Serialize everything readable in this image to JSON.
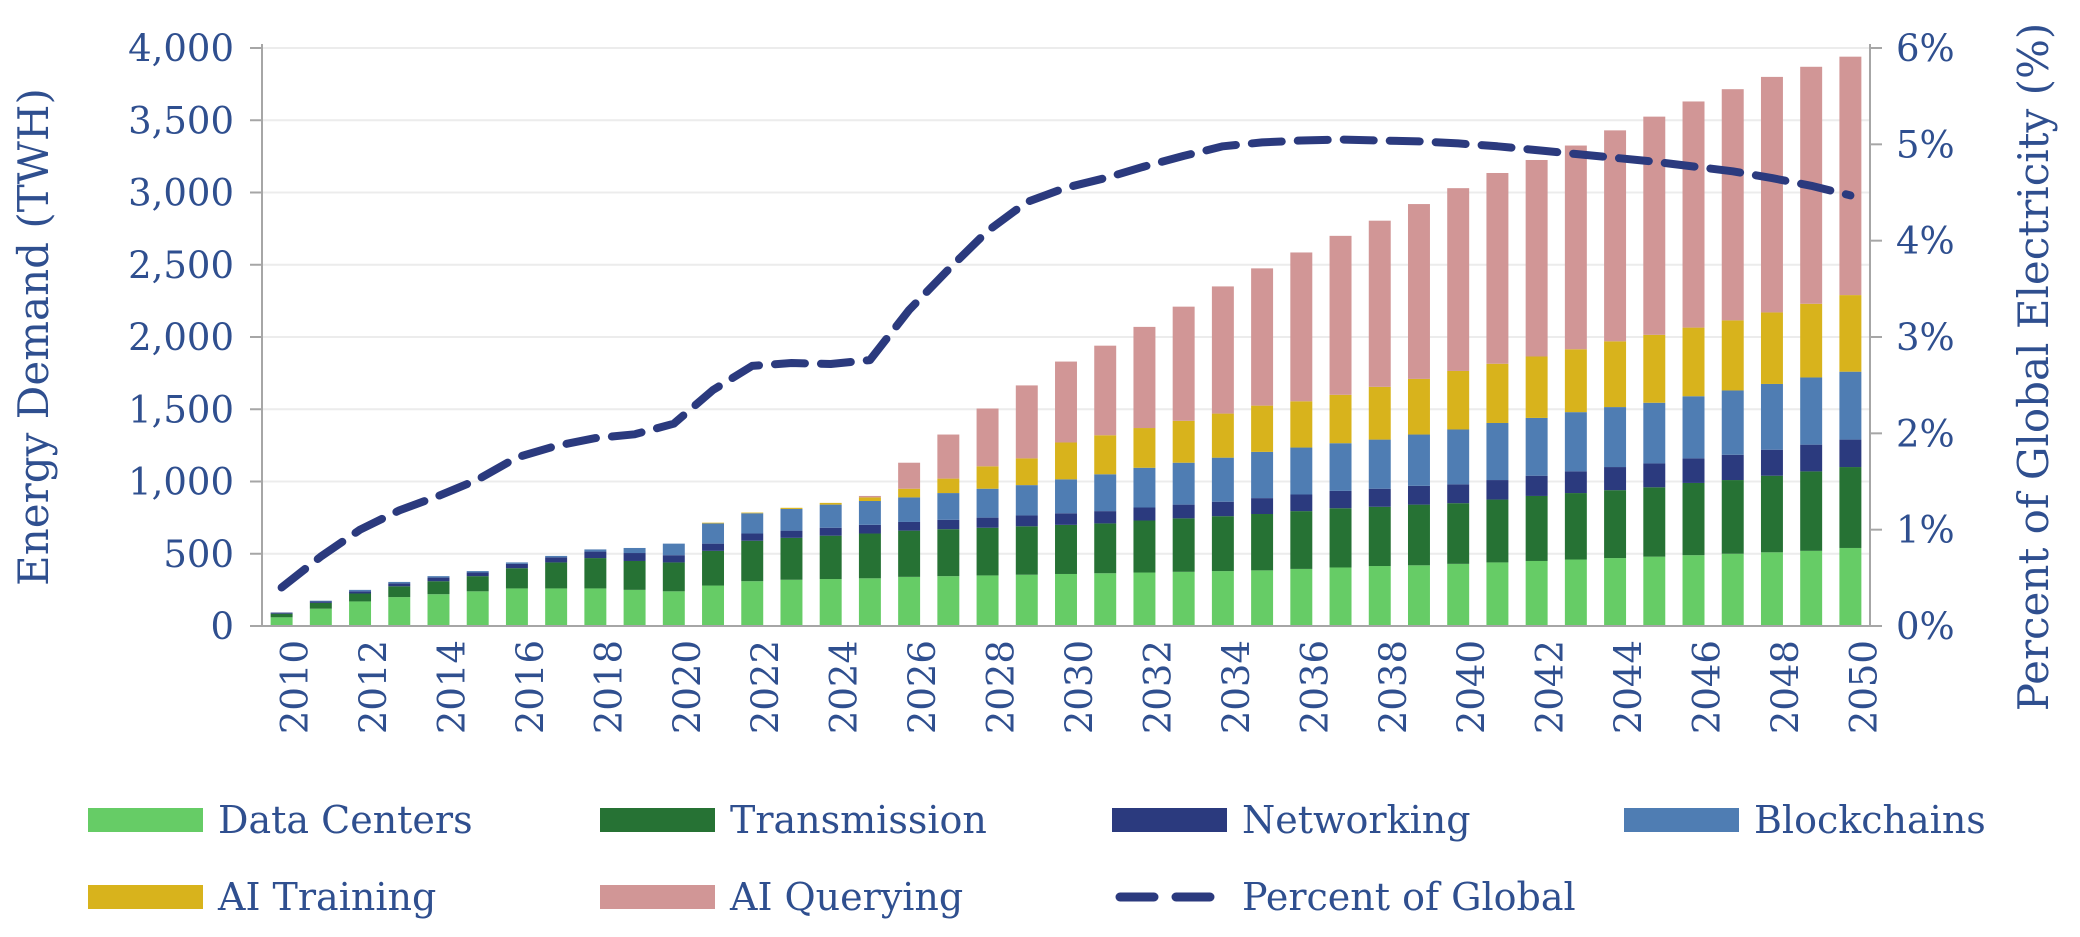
{
  "chart_data": {
    "type": "bar",
    "stacked": true,
    "x": [
      2010,
      2011,
      2012,
      2013,
      2014,
      2015,
      2016,
      2017,
      2018,
      2019,
      2020,
      2021,
      2022,
      2023,
      2024,
      2025,
      2026,
      2027,
      2028,
      2029,
      2030,
      2031,
      2032,
      2033,
      2034,
      2035,
      2036,
      2037,
      2038,
      2039,
      2040,
      2041,
      2042,
      2043,
      2044,
      2045,
      2046,
      2047,
      2048,
      2049,
      2050
    ],
    "x_tick_labels": [
      "2010",
      "2012",
      "2014",
      "2016",
      "2018",
      "2020",
      "2022",
      "2024",
      "2026",
      "2028",
      "2030",
      "2032",
      "2034",
      "2036",
      "2038",
      "2040",
      "2042",
      "2044",
      "2046",
      "2048",
      "2050"
    ],
    "ylabel": "Energy Demand (TWH)",
    "ylim": [
      0,
      4000
    ],
    "y_tick_labels": [
      "0",
      "500",
      "1,000",
      "1,500",
      "2,000",
      "2,500",
      "3,000",
      "3,500",
      "4,000"
    ],
    "y2label": "Percent of Global Electricity (%)",
    "y2lim": [
      0,
      6
    ],
    "y2_tick_labels": [
      "0%",
      "1%",
      "2%",
      "3%",
      "4%",
      "5%",
      "6%"
    ],
    "grid": true,
    "legend_position": "bottom",
    "series": [
      {
        "name": "Data Centers",
        "color": "#66cc66",
        "values": [
          60,
          120,
          170,
          200,
          220,
          240,
          260,
          260,
          260,
          250,
          240,
          280,
          310,
          320,
          325,
          330,
          340,
          345,
          350,
          355,
          360,
          365,
          370,
          375,
          380,
          385,
          395,
          405,
          415,
          420,
          430,
          440,
          450,
          460,
          470,
          480,
          490,
          500,
          510,
          520,
          540
        ]
      },
      {
        "name": "Transmission",
        "color": "#267234",
        "values": [
          25,
          40,
          55,
          75,
          90,
          105,
          140,
          180,
          210,
          200,
          200,
          240,
          280,
          290,
          300,
          310,
          320,
          325,
          330,
          335,
          340,
          345,
          360,
          370,
          380,
          390,
          400,
          410,
          410,
          420,
          420,
          435,
          450,
          460,
          470,
          480,
          500,
          510,
          530,
          550,
          560
        ]
      },
      {
        "name": "Networking",
        "color": "#2b3a7e",
        "values": [
          8,
          10,
          15,
          20,
          25,
          25,
          30,
          35,
          45,
          55,
          50,
          50,
          50,
          50,
          55,
          60,
          60,
          65,
          70,
          75,
          80,
          85,
          90,
          95,
          100,
          110,
          115,
          120,
          125,
          130,
          130,
          135,
          140,
          150,
          160,
          165,
          170,
          175,
          180,
          185,
          190
        ]
      },
      {
        "name": "Blockchains",
        "color": "#4f7db3",
        "values": [
          0,
          5,
          10,
          10,
          10,
          10,
          10,
          10,
          15,
          35,
          80,
          140,
          140,
          150,
          160,
          165,
          170,
          185,
          200,
          210,
          235,
          255,
          275,
          290,
          305,
          320,
          325,
          330,
          340,
          355,
          380,
          395,
          400,
          410,
          415,
          420,
          430,
          445,
          455,
          465,
          470
        ]
      },
      {
        "name": "AI Training",
        "color": "#d8b31c",
        "values": [
          0,
          0,
          0,
          0,
          0,
          0,
          0,
          0,
          0,
          0,
          0,
          5,
          5,
          8,
          12,
          25,
          60,
          100,
          155,
          185,
          255,
          270,
          275,
          290,
          305,
          320,
          320,
          335,
          365,
          385,
          405,
          410,
          425,
          435,
          455,
          470,
          475,
          485,
          495,
          510,
          530
        ]
      },
      {
        "name": "AI Querying",
        "color": "#d19696",
        "values": [
          0,
          0,
          0,
          0,
          0,
          0,
          0,
          0,
          0,
          0,
          0,
          0,
          0,
          0,
          0,
          10,
          180,
          305,
          400,
          505,
          560,
          620,
          700,
          790,
          880,
          950,
          1030,
          1100,
          1150,
          1210,
          1265,
          1320,
          1360,
          1410,
          1460,
          1510,
          1565,
          1600,
          1630,
          1640,
          1650
        ]
      }
    ],
    "line_series": {
      "name": "Percent of Global",
      "axis": "right",
      "color": "#2b3a7e",
      "style": "dashed",
      "values": [
        0.4,
        0.72,
        1.0,
        1.2,
        1.35,
        1.52,
        1.75,
        1.87,
        1.95,
        1.99,
        2.1,
        2.45,
        2.7,
        2.73,
        2.72,
        2.76,
        3.28,
        3.7,
        4.1,
        4.4,
        4.55,
        4.65,
        4.77,
        4.88,
        4.98,
        5.02,
        5.04,
        5.05,
        5.04,
        5.03,
        5.01,
        4.98,
        4.94,
        4.9,
        4.86,
        4.82,
        4.77,
        4.72,
        4.65,
        4.57,
        4.47
      ]
    }
  }
}
